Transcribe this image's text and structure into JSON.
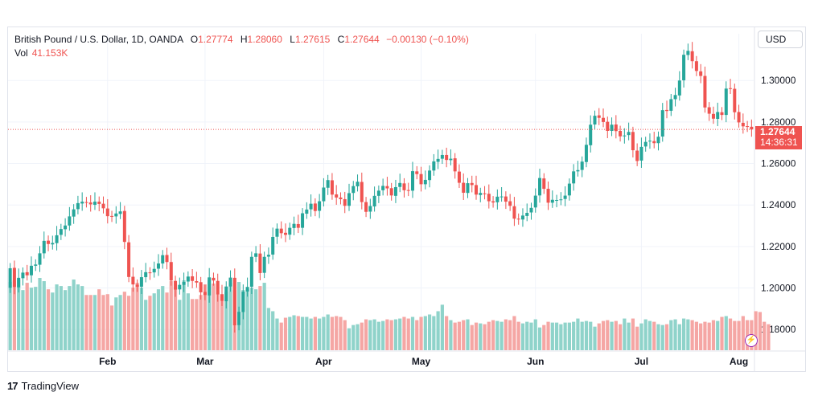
{
  "legend": {
    "symbol": "British Pound / U.S. Dollar, 1D, OANDA",
    "open_label": "O",
    "open": "1.27774",
    "high_label": "H",
    "high": "1.28060",
    "low_label": "L",
    "low": "1.27615",
    "close_label": "C",
    "close": "1.27644",
    "change": "−0.00130 (−0.10%)",
    "vol_label": "Vol",
    "vol": "41.153K"
  },
  "currency_button": "USD",
  "last_price": {
    "value": "1.27644",
    "countdown": "14:36:31"
  },
  "branding": {
    "logo_mark": "17",
    "name": "TradingView"
  },
  "colors": {
    "up": "#26a69a",
    "down": "#ef5350",
    "up_vol": "#8fd3ca",
    "down_vol": "#f5a6a4",
    "grid": "#f0f3fa"
  },
  "chart_data": {
    "type": "candlestick",
    "ylim": [
      1.17,
      1.3148
    ],
    "y_ticks": [
      "1.30000",
      "1.28000",
      "1.26000",
      "1.24000",
      "1.22000",
      "1.20000",
      "1.18000"
    ],
    "y_tick_values": [
      1.3,
      1.28,
      1.26,
      1.24,
      1.22,
      1.2,
      1.18
    ],
    "x_ticks": [
      "Feb",
      "Mar",
      "Apr",
      "May",
      "Jun",
      "Jul",
      "Aug"
    ],
    "x_tick_index": [
      23,
      46,
      74,
      97,
      124,
      149,
      172
    ],
    "last_close": 1.27644,
    "closes": [
      1.2095,
      1.2005,
      1.2049,
      1.2074,
      1.2061,
      1.2107,
      1.2113,
      1.2167,
      1.2227,
      1.2212,
      1.2217,
      1.2254,
      1.2284,
      1.2301,
      1.2345,
      1.2379,
      1.2409,
      1.2416,
      1.2413,
      1.2403,
      1.2416,
      1.2405,
      1.2384,
      1.2346,
      1.2343,
      1.2359,
      1.2369,
      1.2222,
      1.2053,
      1.2017,
      1.2006,
      1.2052,
      1.2076,
      1.2074,
      1.2092,
      1.2118,
      1.2158,
      1.2125,
      1.2036,
      1.1992,
      1.2015,
      1.2029,
      1.2055,
      1.2034,
      1.2026,
      1.1979,
      1.1966,
      1.2051,
      1.2036,
      1.1969,
      1.1938,
      1.2007,
      1.205,
      1.182,
      1.1885,
      1.1982,
      1.2005,
      1.215,
      1.2167,
      1.2072,
      1.215,
      1.216,
      1.2246,
      1.2286,
      1.2264,
      1.2256,
      1.229,
      1.2309,
      1.229,
      1.236,
      1.2378,
      1.2406,
      1.2371,
      1.2418,
      1.2484,
      1.252,
      1.245,
      1.2436,
      1.2428,
      1.2396,
      1.2457,
      1.2491,
      1.2512,
      1.2414,
      1.2367,
      1.2395,
      1.2444,
      1.2469,
      1.2492,
      1.248,
      1.2446,
      1.2486,
      1.2506,
      1.2471,
      1.2468,
      1.2563,
      1.2549,
      1.25,
      1.2521,
      1.2566,
      1.261,
      1.2622,
      1.2641,
      1.2617,
      1.2623,
      1.2562,
      1.2507,
      1.2459,
      1.2505,
      1.2496,
      1.245,
      1.2458,
      1.2452,
      1.2418,
      1.2412,
      1.244,
      1.2441,
      1.2416,
      1.2396,
      1.2334,
      1.233,
      1.2349,
      1.2362,
      1.2386,
      1.2445,
      1.253,
      1.2478,
      1.2411,
      1.2425,
      1.2424,
      1.2427,
      1.2445,
      1.2503,
      1.2562,
      1.2568,
      1.2609,
      1.269,
      1.2787,
      1.283,
      1.282,
      1.28,
      1.2757,
      1.2787,
      1.2756,
      1.2731,
      1.2735,
      1.2752,
      1.2664,
      1.2612,
      1.268,
      1.2704,
      1.271,
      1.2698,
      1.2729,
      1.2857,
      1.2853,
      1.291,
      1.293,
      1.3,
      1.3124,
      1.3143,
      1.3093,
      1.3046,
      1.3022,
      1.287,
      1.284,
      1.2816,
      1.2848,
      1.2834,
      1.2961,
      1.296,
      1.2847,
      1.2798,
      1.2779,
      1.2777,
      1.2764
    ],
    "opens": [
      1.2001,
      1.2097,
      1.2003,
      1.2047,
      1.2076,
      1.2061,
      1.2107,
      1.2112,
      1.2167,
      1.2228,
      1.221,
      1.2216,
      1.2256,
      1.2283,
      1.2301,
      1.2344,
      1.238,
      1.2407,
      1.2414,
      1.2412,
      1.2401,
      1.2416,
      1.2406,
      1.2383,
      1.2347,
      1.2345,
      1.2357,
      1.2371,
      1.222,
      1.2054,
      1.2016,
      1.2006,
      1.2052,
      1.2075,
      1.2075,
      1.2093,
      1.2118,
      1.2159,
      1.2125,
      1.2034,
      1.1993,
      1.2015,
      1.2031,
      1.2056,
      1.2033,
      1.2028,
      1.1981,
      1.1964,
      1.2049,
      1.2034,
      1.197,
      1.1936,
      1.2007,
      1.2049,
      1.1821,
      1.1884,
      1.1983,
      1.2006,
      1.215,
      1.2166,
      1.2073,
      1.2151,
      1.2161,
      1.2247,
      1.2286,
      1.2266,
      1.2257,
      1.2289,
      1.2308,
      1.229,
      1.2358,
      1.2379,
      1.2407,
      1.2372,
      1.2418,
      1.2483,
      1.2519,
      1.2451,
      1.2436,
      1.2428,
      1.2396,
      1.2458,
      1.249,
      1.2511,
      1.2414,
      1.2368,
      1.2393,
      1.2444,
      1.2471,
      1.2491,
      1.2481,
      1.2444,
      1.2487,
      1.2504,
      1.2472,
      1.2469,
      1.2562,
      1.2549,
      1.25,
      1.252,
      1.2566,
      1.2608,
      1.2623,
      1.2641,
      1.2616,
      1.2625,
      1.2561,
      1.2507,
      1.2458,
      1.2506,
      1.2496,
      1.2448,
      1.2456,
      1.2454,
      1.2418,
      1.2413,
      1.2441,
      1.2441,
      1.2418,
      1.2394,
      1.2334,
      1.233,
      1.2347,
      1.2364,
      1.2388,
      1.2446,
      1.2528,
      1.2478,
      1.2411,
      1.2424,
      1.2424,
      1.2429,
      1.2446,
      1.2504,
      1.2562,
      1.2569,
      1.2607,
      1.2688,
      1.2788,
      1.2832,
      1.282,
      1.2801,
      1.2757,
      1.2788,
      1.2757,
      1.2731,
      1.2737,
      1.2752,
      1.2662,
      1.2614,
      1.2682,
      1.2706,
      1.2708,
      1.2698,
      1.273,
      1.2858,
      1.2854,
      1.291,
      1.2928,
      1.3001,
      1.3123,
      1.3141,
      1.3093,
      1.3044,
      1.3022,
      1.2871,
      1.2839,
      1.2815,
      1.2847,
      1.2834,
      1.2963,
      1.296,
      1.2848,
      1.2796,
      1.278,
      1.2777
    ],
    "volumes": [
      0.84,
      0.86,
      0.87,
      0.74,
      0.83,
      0.77,
      0.78,
      0.89,
      0.85,
      0.75,
      0.71,
      0.81,
      0.79,
      0.74,
      0.79,
      0.87,
      0.81,
      0.79,
      0.68,
      0.68,
      0.68,
      0.75,
      0.68,
      0.69,
      0.55,
      0.65,
      0.68,
      0.72,
      0.67,
      0.77,
      0.83,
      0.77,
      0.62,
      0.67,
      0.7,
      0.75,
      0.79,
      0.71,
      0.85,
      0.77,
      0.62,
      0.86,
      0.7,
      0.63,
      0.63,
      0.68,
      0.81,
      0.86,
      0.82,
      0.69,
      0.67,
      0.72,
      0.83,
      0.74,
      0.84,
      0.74,
      0.75,
      0.77,
      0.75,
      0.79,
      0.83,
      0.52,
      0.48,
      0.39,
      0.34,
      0.4,
      0.41,
      0.43,
      0.42,
      0.41,
      0.41,
      0.39,
      0.41,
      0.39,
      0.41,
      0.44,
      0.41,
      0.42,
      0.41,
      0.37,
      0.27,
      0.31,
      0.32,
      0.34,
      0.38,
      0.37,
      0.38,
      0.35,
      0.36,
      0.38,
      0.37,
      0.38,
      0.39,
      0.41,
      0.39,
      0.41,
      0.37,
      0.41,
      0.42,
      0.44,
      0.42,
      0.48,
      0.56,
      0.42,
      0.37,
      0.34,
      0.35,
      0.37,
      0.38,
      0.31,
      0.34,
      0.33,
      0.32,
      0.35,
      0.37,
      0.36,
      0.35,
      0.38,
      0.37,
      0.42,
      0.35,
      0.33,
      0.35,
      0.34,
      0.38,
      0.28,
      0.31,
      0.35,
      0.34,
      0.34,
      0.32,
      0.34,
      0.34,
      0.35,
      0.39,
      0.35,
      0.36,
      0.35,
      0.29,
      0.33,
      0.36,
      0.37,
      0.35,
      0.36,
      0.32,
      0.39,
      0.34,
      0.39,
      0.29,
      0.33,
      0.38,
      0.36,
      0.35,
      0.32,
      0.31,
      0.32,
      0.37,
      0.38,
      0.32,
      0.39,
      0.38,
      0.37,
      0.35,
      0.33,
      0.35,
      0.34,
      0.37,
      0.36,
      0.41,
      0.42,
      0.39,
      0.36,
      0.36,
      0.42,
      0.37,
      0.37,
      0.48,
      0.47,
      0.35,
      0.32
    ]
  }
}
